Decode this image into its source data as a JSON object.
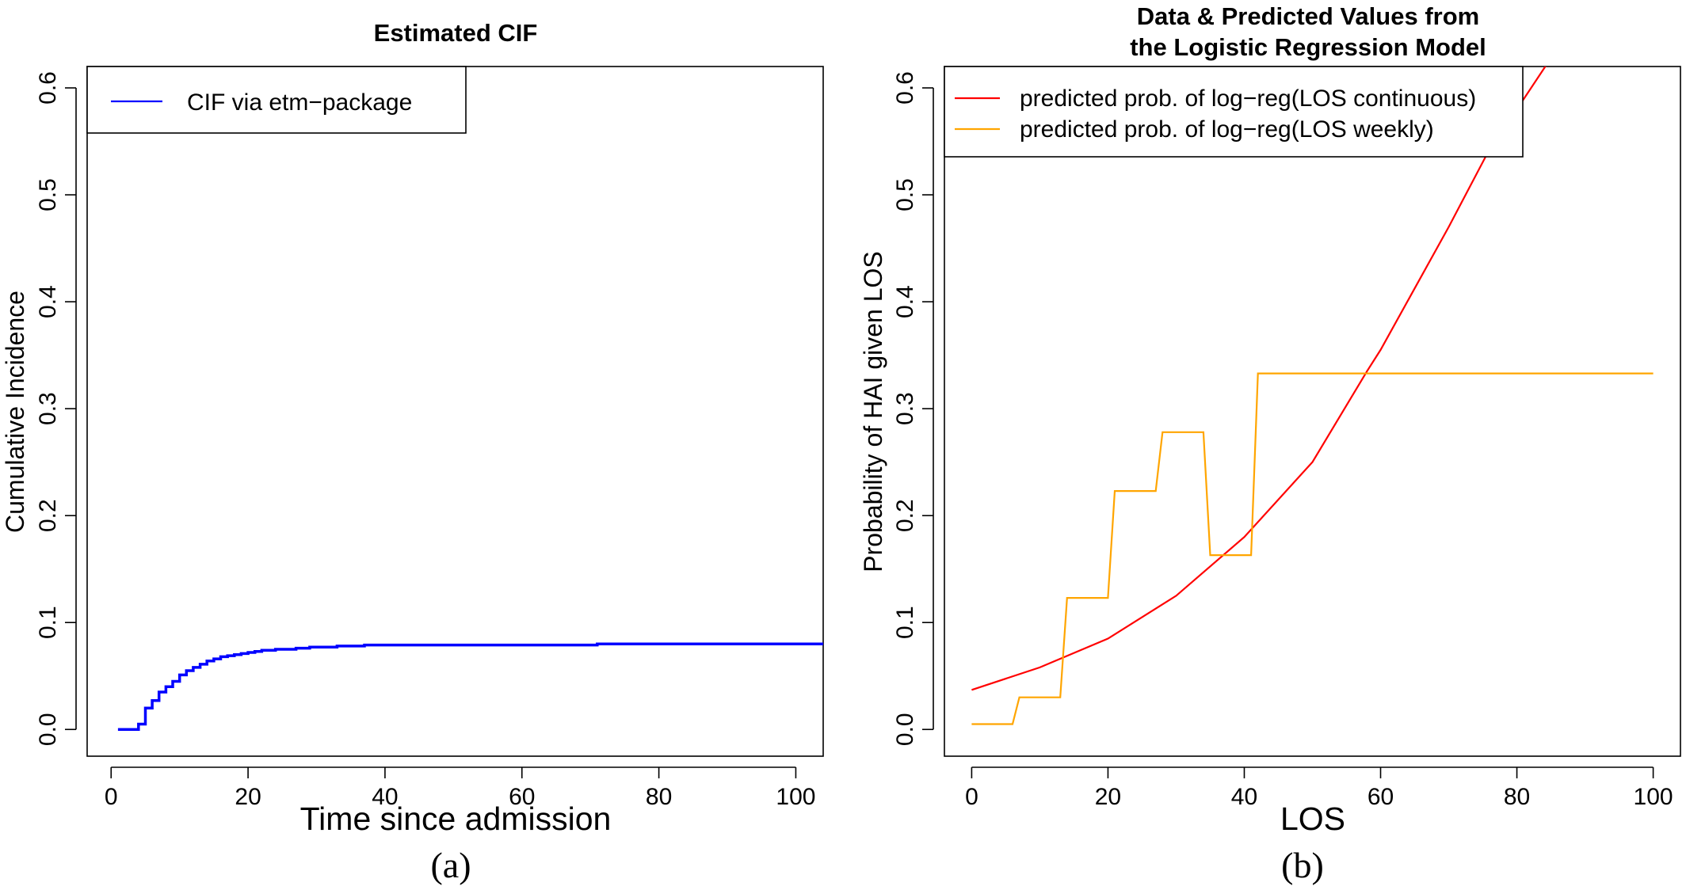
{
  "chart_data": [
    {
      "type": "line",
      "panel_label": "(a)",
      "title": "Estimated CIF",
      "xlabel": "Time since admission",
      "ylabel": "Cumulative Incidence",
      "xlim": [
        -3.5,
        104
      ],
      "ylim": [
        -0.025,
        0.62
      ],
      "xticks": [
        0,
        20,
        40,
        60,
        80,
        100
      ],
      "yticks": [
        0.0,
        0.1,
        0.2,
        0.3,
        0.4,
        0.5,
        0.6
      ],
      "xtick_labels": [
        "0",
        "20",
        "40",
        "60",
        "80",
        "100"
      ],
      "ytick_labels": [
        "0.0",
        "0.1",
        "0.2",
        "0.3",
        "0.4",
        "0.5",
        "0.6"
      ],
      "legend": {
        "position": "top-left",
        "entries": [
          "CIF via etm−package"
        ]
      },
      "series": [
        {
          "name": "CIF via etm−package",
          "color": "#0000ff",
          "step": true,
          "x": [
            1,
            3,
            4,
            5,
            6,
            7,
            8,
            9,
            10,
            11,
            12,
            13,
            14,
            15,
            16,
            17,
            18,
            19,
            20,
            21,
            22,
            24,
            27,
            29,
            33,
            37,
            50,
            71,
            104
          ],
          "y": [
            0.0,
            0.0,
            0.005,
            0.02,
            0.027,
            0.035,
            0.04,
            0.045,
            0.051,
            0.055,
            0.058,
            0.061,
            0.064,
            0.066,
            0.068,
            0.069,
            0.07,
            0.071,
            0.072,
            0.073,
            0.074,
            0.075,
            0.076,
            0.077,
            0.078,
            0.079,
            0.079,
            0.08,
            0.08
          ]
        }
      ]
    },
    {
      "type": "line",
      "panel_label": "(b)",
      "title_lines": [
        "Data & Predicted Values from",
        "the Logistic Regression Model"
      ],
      "xlabel": "LOS",
      "ylabel": "Probability of HAI given LOS",
      "xlim": [
        -4,
        104
      ],
      "ylim": [
        -0.025,
        0.62
      ],
      "xticks": [
        0,
        20,
        40,
        60,
        80,
        100
      ],
      "yticks": [
        0.0,
        0.1,
        0.2,
        0.3,
        0.4,
        0.5,
        0.6
      ],
      "xtick_labels": [
        "0",
        "20",
        "40",
        "60",
        "80",
        "100"
      ],
      "ytick_labels": [
        "0.0",
        "0.1",
        "0.2",
        "0.3",
        "0.4",
        "0.5",
        "0.6"
      ],
      "legend": {
        "position": "top-left",
        "entries": [
          "predicted prob. of log−reg(LOS continuous)",
          "predicted prob. of log−reg(LOS weekly)"
        ]
      },
      "series": [
        {
          "name": "predicted prob. of log−reg(LOS continuous)",
          "color": "#ff0000",
          "step": false,
          "x": [
            0,
            10,
            20,
            30,
            40,
            50,
            58,
            60,
            70,
            77,
            80,
            85
          ],
          "y": [
            0.037,
            0.058,
            0.085,
            0.125,
            0.18,
            0.25,
            0.335,
            0.355,
            0.47,
            0.555,
            0.58,
            0.628
          ]
        },
        {
          "name": "predicted prob. of log−reg(LOS weekly)",
          "color": "#ffa500",
          "step": false,
          "x": [
            0,
            6,
            7,
            13,
            14,
            20,
            21,
            27,
            28,
            34,
            35,
            41,
            42,
            100
          ],
          "y": [
            0.005,
            0.005,
            0.03,
            0.03,
            0.123,
            0.123,
            0.223,
            0.223,
            0.278,
            0.278,
            0.163,
            0.163,
            0.333,
            0.333
          ]
        }
      ]
    }
  ]
}
